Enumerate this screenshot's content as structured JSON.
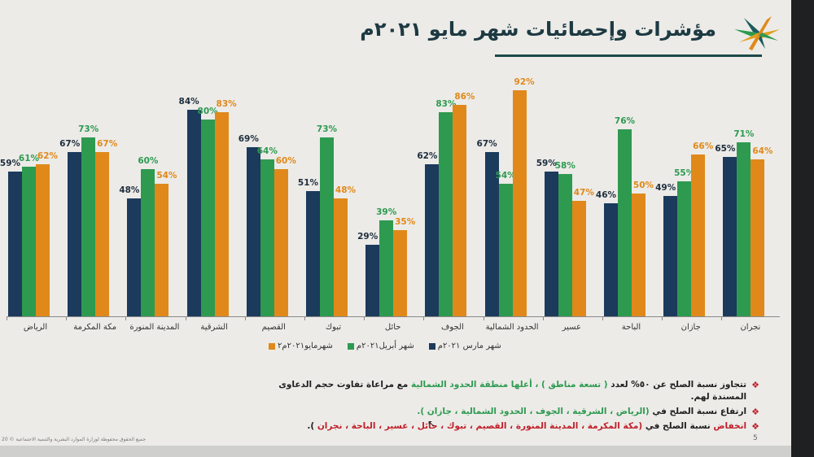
{
  "slide": {
    "title": "مؤشرات وإحصائيات شهر مايو ٢٠٢١م",
    "page_number": "5",
    "footer": "جميع الحقوق محفوظة لوزارة الموارد البشرية والتنمية الاجتماعية © 20"
  },
  "colors": {
    "march": "#1b3a5c",
    "april": "#2e9a50",
    "may": "#e0891a",
    "title": "#1d3a42",
    "highlight_red": "#c0202a"
  },
  "legend": [
    {
      "label": "شهر مارس ٢٠٢١م",
      "color": "#1b3a5c"
    },
    {
      "label": "شهر أبريل٢٠٢١م",
      "color": "#2e9a50"
    },
    {
      "label": "شهرمايو٢٠٢١م٢",
      "color": "#e0891a"
    }
  ],
  "chart_data": {
    "type": "bar",
    "title": "مؤشرات وإحصائيات شهر مايو ٢٠٢١م",
    "xlabel": "",
    "ylabel": "",
    "ylim": [
      0,
      100
    ],
    "grid": false,
    "legend_position": "bottom",
    "categories": [
      "الرياض",
      "مكة المكرمة",
      "المدينة المنورة",
      "الشرقية",
      "القصيم",
      "تبوك",
      "حائل",
      "الجوف",
      "الحدود الشمالية",
      "عسير",
      "الباحة",
      "جازان",
      "نجران"
    ],
    "series": [
      {
        "name": "شهر مارس ٢٠٢١م",
        "values": [
          59,
          67,
          48,
          84,
          69,
          51,
          29,
          62,
          67,
          59,
          46,
          49,
          65
        ]
      },
      {
        "name": "شهر أبريل٢٠٢١م",
        "values": [
          61,
          73,
          60,
          80,
          64,
          73,
          39,
          83,
          54,
          58,
          76,
          55,
          71
        ]
      },
      {
        "name": "شهرمايو٢٠٢١م٢",
        "values": [
          62,
          67,
          54,
          83,
          60,
          48,
          35,
          86,
          92,
          47,
          50,
          66,
          64
        ]
      }
    ]
  },
  "notes": [
    {
      "prefix": "تتجاوز نسبة الصلح عن ٥٠% لعدد",
      "highlight1": "( تسعة مناطق ) ، أعلها منطقة الحدود الشمالية",
      "suffix": "مع مراعاة تفاوت حجم الدعاوى المسندة لهم."
    },
    {
      "prefix": "ارتفاع نسبة الصلح في",
      "highlight1": "(الرياض ، الشرقية ، الجوف ، الحدود الشمالية ، جازان ).",
      "suffix": ""
    },
    {
      "prefix_highlight": "انخفاض",
      "prefix": "نسبة الصلح في",
      "highlight1": "(مكة المكرمة ، المدينة المنورة ، القصيم ، تبوك ، حائل ، عسير ، الباحة ، نجران",
      "suffix": ")."
    }
  ]
}
